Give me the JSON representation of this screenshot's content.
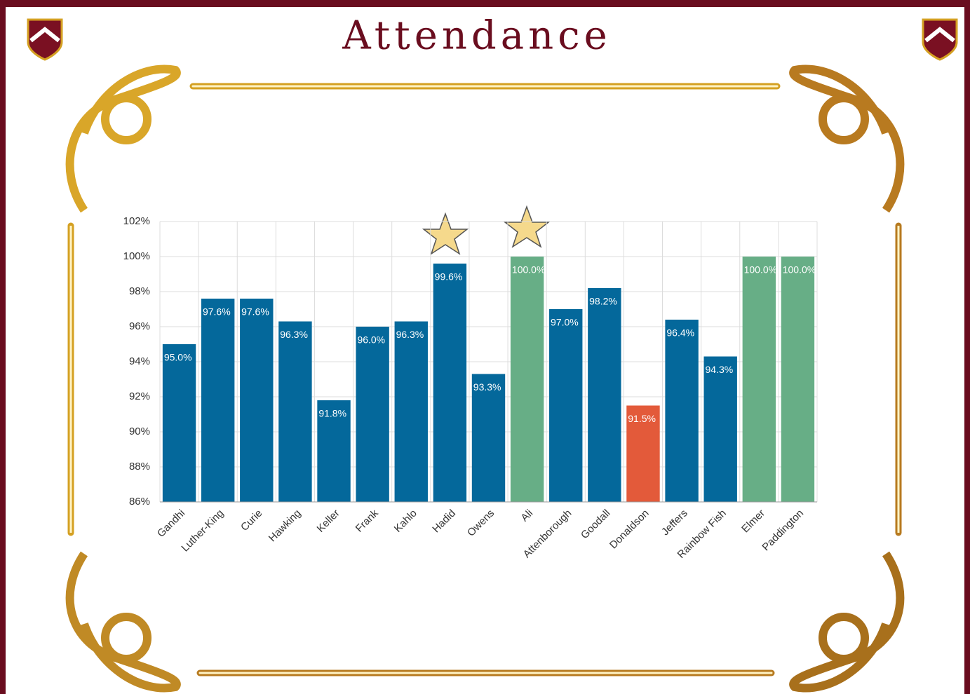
{
  "chart_data": {
    "type": "bar",
    "title": "Attendance",
    "categories": [
      "Gandhi",
      "Luther-King",
      "Curie",
      "Hawking",
      "Keller",
      "Frank",
      "Kahlo",
      "Hadid",
      "Owens",
      "Ali",
      "Attenborough",
      "Goodall",
      "Donaldson",
      "Jeffers",
      "Rainbow Fish",
      "Elmer",
      "Paddington"
    ],
    "values": [
      95.0,
      97.6,
      97.6,
      96.3,
      91.8,
      96.0,
      96.3,
      99.6,
      93.3,
      100.0,
      97.0,
      98.2,
      91.5,
      96.4,
      94.3,
      100.0,
      100.0
    ],
    "value_labels": [
      "95.0%",
      "97.6%",
      "97.6%",
      "96.3%",
      "91.8%",
      "96.0%",
      "96.3%",
      "99.6%",
      "93.3%",
      "100.0%",
      "97.0%",
      "98.2%",
      "91.5%",
      "96.4%",
      "94.3%",
      "100.0%",
      "100.0%"
    ],
    "colors": [
      "#04689b",
      "#04689b",
      "#04689b",
      "#04689b",
      "#04689b",
      "#04689b",
      "#04689b",
      "#04689b",
      "#04689b",
      "#67ae86",
      "#04689b",
      "#04689b",
      "#e35a3a",
      "#04689b",
      "#04689b",
      "#67ae86",
      "#67ae86"
    ],
    "ylim": [
      86,
      102
    ],
    "yticks": [
      {
        "value": 86,
        "label": "86%"
      },
      {
        "value": 88,
        "label": "88%"
      },
      {
        "value": 90,
        "label": "90%"
      },
      {
        "value": 92,
        "label": "92%"
      },
      {
        "value": 94,
        "label": "94%"
      },
      {
        "value": 96,
        "label": "96%"
      },
      {
        "value": 98,
        "label": "98%"
      },
      {
        "value": 100,
        "label": "100%"
      },
      {
        "value": 102,
        "label": "102%"
      }
    ],
    "grid": true
  }
}
